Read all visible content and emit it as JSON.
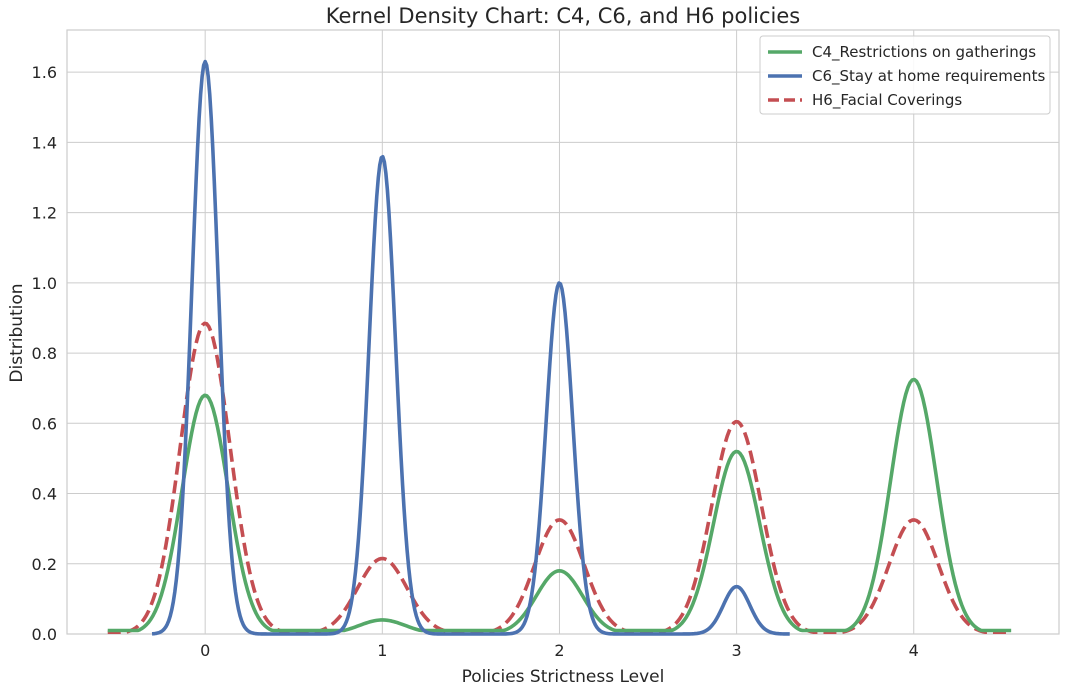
{
  "chart_data": {
    "type": "line",
    "title": "Kernel Density Chart: C4, C6, and H6 policies",
    "xlabel": "Policies Strictness Level",
    "ylabel": "Distribution",
    "xlim": [
      -0.78,
      4.82
    ],
    "ylim": [
      0,
      1.72
    ],
    "x_ticks": [
      0,
      1,
      2,
      3,
      4
    ],
    "x_tick_labels": [
      "0",
      "1",
      "2",
      "3",
      "4"
    ],
    "y_ticks": [
      0.0,
      0.2,
      0.4,
      0.6,
      0.8,
      1.0,
      1.2,
      1.4,
      1.6
    ],
    "y_tick_labels": [
      "0.0",
      "0.2",
      "0.4",
      "0.6",
      "0.8",
      "1.0",
      "1.2",
      "1.4",
      "1.6"
    ],
    "grid": true,
    "legend_position": "top-right",
    "series": [
      {
        "name": "C4_Restrictions on gatherings",
        "color": "#55a868",
        "dash": "solid",
        "x_range": [
          -0.55,
          4.55
        ],
        "sigma": 0.13,
        "peaks": [
          {
            "x": 0,
            "y": 0.68
          },
          {
            "x": 1,
            "y": 0.04
          },
          {
            "x": 2,
            "y": 0.18
          },
          {
            "x": 3,
            "y": 0.52
          },
          {
            "x": 4,
            "y": 0.725
          }
        ],
        "baseline": 0.01
      },
      {
        "name": "C6_Stay at home requirements",
        "color": "#4c72b0",
        "dash": "solid",
        "x_range": [
          -0.3,
          3.3
        ],
        "sigma": 0.075,
        "peaks": [
          {
            "x": 0,
            "y": 1.63
          },
          {
            "x": 1,
            "y": 1.36
          },
          {
            "x": 2,
            "y": 1.0
          },
          {
            "x": 3,
            "y": 0.135
          }
        ],
        "baseline": 0.0
      },
      {
        "name": "H6_Facial Coverings",
        "color": "#c44e52",
        "dash": "dashed",
        "x_range": [
          -0.55,
          4.55
        ],
        "sigma": 0.14,
        "peaks": [
          {
            "x": 0,
            "y": 0.885
          },
          {
            "x": 1,
            "y": 0.215
          },
          {
            "x": 2,
            "y": 0.325
          },
          {
            "x": 3,
            "y": 0.605
          },
          {
            "x": 4,
            "y": 0.325
          }
        ],
        "baseline": 0.005
      }
    ]
  }
}
